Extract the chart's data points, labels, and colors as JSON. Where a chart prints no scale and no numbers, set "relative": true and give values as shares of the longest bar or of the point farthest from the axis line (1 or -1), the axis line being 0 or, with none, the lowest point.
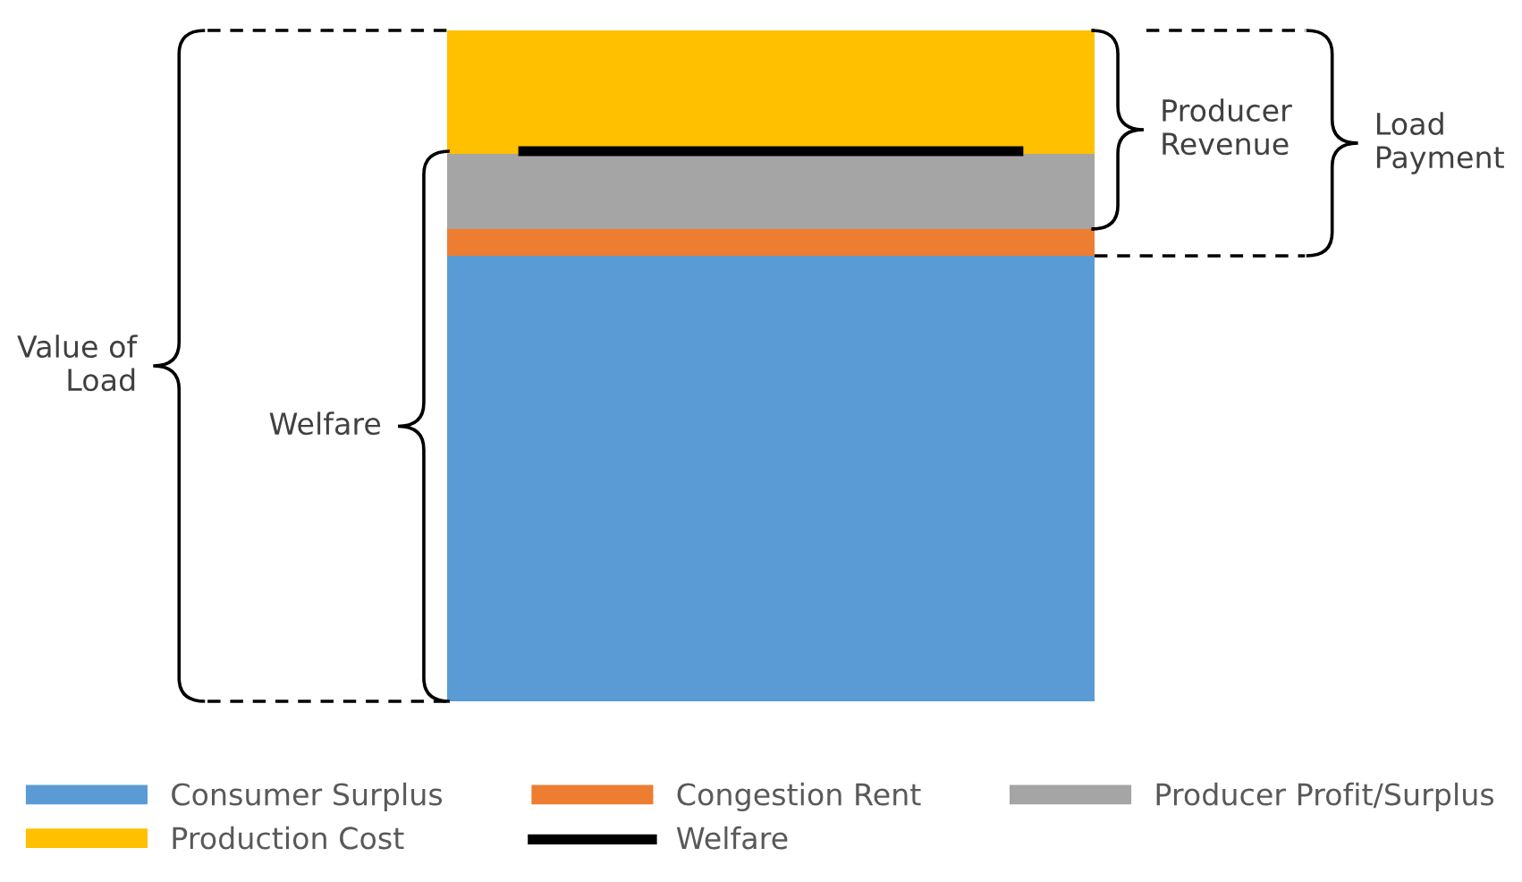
{
  "chart_data": {
    "type": "bar",
    "stacked": true,
    "relative": true,
    "categories": [
      null
    ],
    "legend": "bottom",
    "series": [
      {
        "name": "Consumer Surplus",
        "color": "#5b9bd5",
        "values": [
          0.664
        ]
      },
      {
        "name": "Congestion Rent",
        "color": "#ed7d31",
        "values": [
          0.04
        ]
      },
      {
        "name": "Producer Profit/Surplus",
        "color": "#a5a5a5",
        "values": [
          0.112
        ]
      },
      {
        "name": "Production Cost",
        "color": "#ffc000",
        "values": [
          0.184
        ]
      }
    ],
    "ref_lines": [
      {
        "axis": "y",
        "value": 0.82,
        "label": "Welfare",
        "color": "#000000"
      }
    ],
    "annotations": [
      "Value of\nLoad",
      "Welfare",
      "Producer\nRevenue",
      "Load\nPayment"
    ]
  }
}
